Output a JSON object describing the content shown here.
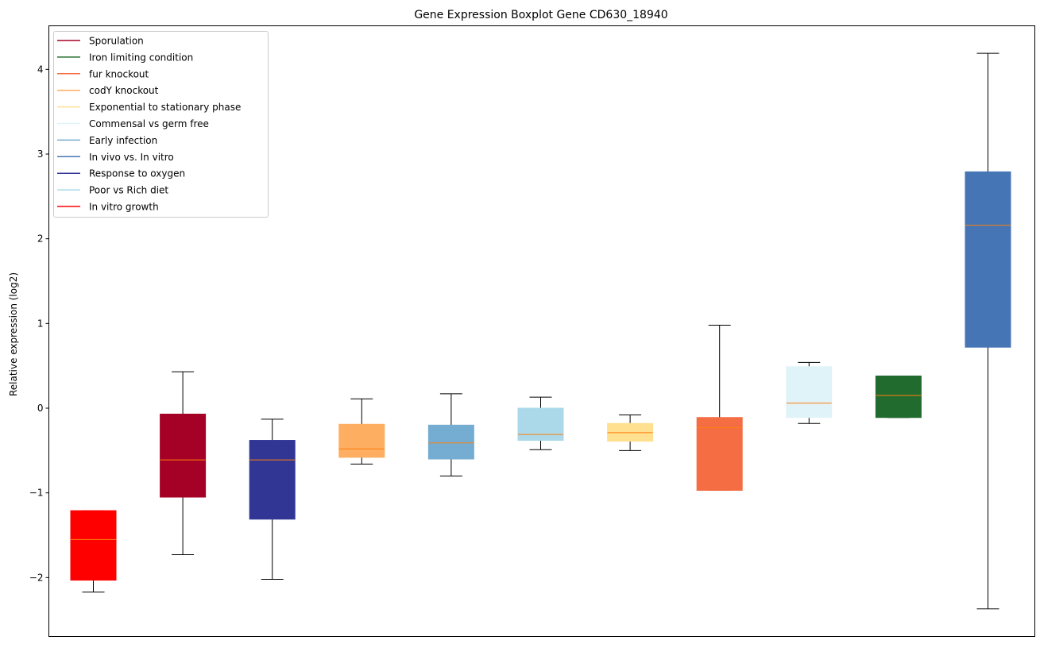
{
  "chart_data": {
    "type": "boxplot",
    "title": "Gene Expression Boxplot Gene CD630_18940",
    "xlabel": "",
    "ylabel": "Relative expression (log2)",
    "ylim": [
      -2.68,
      4.5
    ],
    "yticks": [
      -2,
      -1,
      0,
      1,
      2,
      3,
      4
    ],
    "ytick_labels": [
      "−2",
      "−1",
      "0",
      "1",
      "2",
      "3",
      "4"
    ],
    "grid": false,
    "legend_position": "top-left",
    "median_color": "#ff7f0e",
    "whisker_color": "#000000",
    "legend": [
      {
        "label": "Sporulation",
        "color": "#a50026"
      },
      {
        "label": "Iron limiting condition",
        "color": "#226b2e"
      },
      {
        "label": "fur knockout",
        "color": "#f46d43"
      },
      {
        "label": "codY knockout",
        "color": "#fdae61"
      },
      {
        "label": "Exponential to stationary phase",
        "color": "#fee090"
      },
      {
        "label": "Commensal vs germ free",
        "color": "#e0f3f8"
      },
      {
        "label": "Early infection",
        "color": "#74add1"
      },
      {
        "label": "In vivo vs. In vitro",
        "color": "#4575b4"
      },
      {
        "label": "Response to oxygen",
        "color": "#313695"
      },
      {
        "label": "Poor vs Rich diet",
        "color": "#abd9e9"
      },
      {
        "label": "In vitro growth",
        "color": "#ff0000"
      }
    ],
    "series": [
      {
        "name": "In vitro growth",
        "color": "#ff0000",
        "whislo": -2.17,
        "q1": -2.03,
        "median": -1.55,
        "q3": -1.21,
        "whishi": -1.21
      },
      {
        "name": "Sporulation",
        "color": "#a50026",
        "whislo": -1.73,
        "q1": -1.05,
        "median": -0.61,
        "q3": -0.07,
        "whishi": 0.43
      },
      {
        "name": "Response to oxygen",
        "color": "#313695",
        "whislo": -2.02,
        "q1": -1.31,
        "median": -0.61,
        "q3": -0.38,
        "whishi": -0.13
      },
      {
        "name": "codY knockout",
        "color": "#fdae61",
        "whislo": -0.66,
        "q1": -0.58,
        "median": -0.48,
        "q3": -0.19,
        "whishi": 0.11
      },
      {
        "name": "Early infection",
        "color": "#74add1",
        "whislo": -0.8,
        "q1": -0.6,
        "median": -0.41,
        "q3": -0.2,
        "whishi": 0.17
      },
      {
        "name": "Poor vs Rich diet",
        "color": "#abd9e9",
        "whislo": -0.49,
        "q1": -0.38,
        "median": -0.31,
        "q3": 0.0,
        "whishi": 0.13
      },
      {
        "name": "Exponential to stationary phase",
        "color": "#fee090",
        "whislo": -0.5,
        "q1": -0.39,
        "median": -0.29,
        "q3": -0.18,
        "whishi": -0.08
      },
      {
        "name": "fur knockout",
        "color": "#f46d43",
        "whislo": -0.97,
        "q1": -0.97,
        "median": -0.23,
        "q3": -0.11,
        "whishi": 0.98
      },
      {
        "name": "Commensal vs germ free",
        "color": "#e0f3f8",
        "whislo": -0.18,
        "q1": -0.11,
        "median": 0.06,
        "q3": 0.49,
        "whishi": 0.54
      },
      {
        "name": "Iron limiting condition",
        "color": "#226b2e",
        "whislo": -0.11,
        "q1": -0.11,
        "median": 0.15,
        "q3": 0.38,
        "whishi": 0.38
      },
      {
        "name": "In vivo vs. In vitro",
        "color": "#4575b4",
        "whislo": -2.37,
        "q1": 0.72,
        "median": 2.16,
        "q3": 2.79,
        "whishi": 4.19
      }
    ]
  }
}
